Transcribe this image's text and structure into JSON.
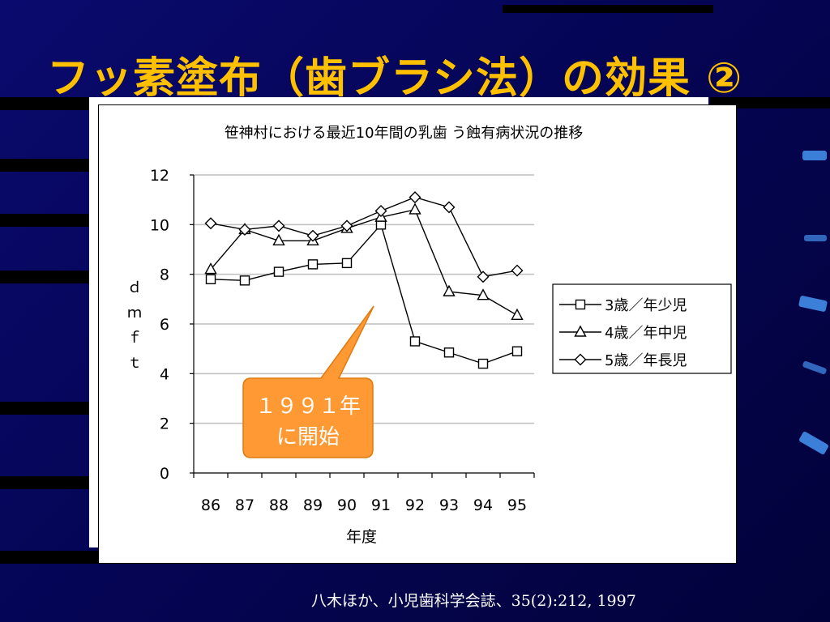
{
  "slide": {
    "title": "フッ素塗布（歯ブラシ法）の効果 ②",
    "citation": "八木ほか、小児歯科学会誌、35(2):212, 1997"
  },
  "callout": {
    "line1": "１９９１年",
    "line2": "に開始"
  },
  "chart_data": {
    "type": "line",
    "title": "笹神村における最近10年間の乳歯 う蝕有病状況の推移",
    "xlabel": "年度",
    "ylabel": "ｄｍｆｔ",
    "categories": [
      "86",
      "87",
      "88",
      "89",
      "90",
      "91",
      "92",
      "93",
      "94",
      "95"
    ],
    "ylim": [
      0,
      12
    ],
    "yticks": [
      0,
      2,
      4,
      6,
      8,
      10,
      12
    ],
    "grid": true,
    "legend_position": "right",
    "series": [
      {
        "name": "3歳／年少児",
        "marker": "square",
        "values": [
          7.8,
          7.75,
          8.1,
          8.4,
          8.45,
          10.0,
          5.3,
          4.85,
          4.4,
          4.9
        ]
      },
      {
        "name": "4歳／年中児",
        "marker": "triangle",
        "values": [
          8.2,
          9.8,
          9.35,
          9.35,
          9.85,
          10.3,
          10.6,
          7.3,
          7.15,
          6.35
        ]
      },
      {
        "name": "5歳／年長児",
        "marker": "diamond",
        "values": [
          10.05,
          9.8,
          9.95,
          9.55,
          9.95,
          10.55,
          11.1,
          10.7,
          7.9,
          8.15
        ]
      }
    ]
  }
}
